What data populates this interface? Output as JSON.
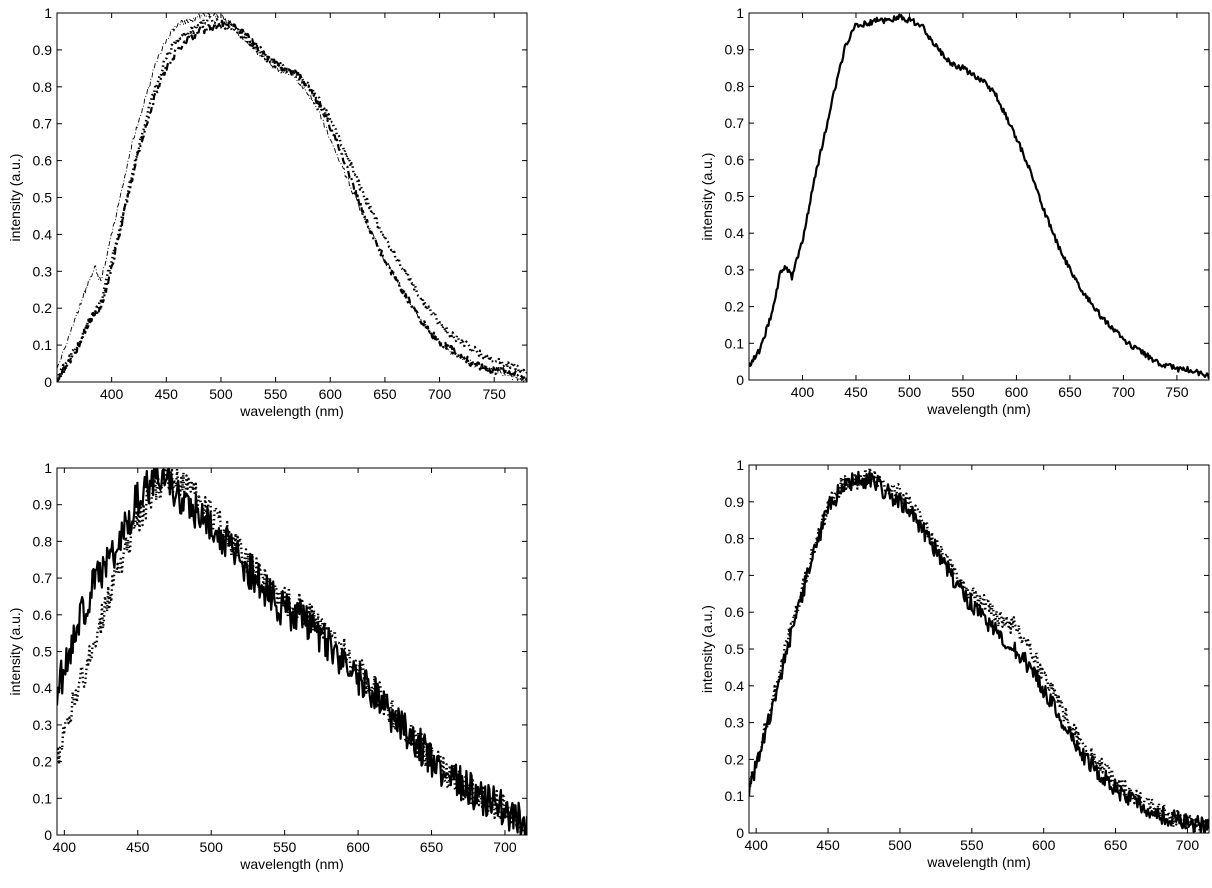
{
  "chart_data": [
    {
      "id": "top-left",
      "type": "line",
      "xlabel": "wavelength (nm)",
      "ylabel": "intensity (a.u.)",
      "xlim": [
        350,
        780
      ],
      "ylim": [
        0,
        1
      ],
      "xticks": [
        "400",
        "450",
        "500",
        "550",
        "600",
        "650",
        "700",
        "750"
      ],
      "yticks": [
        "0",
        "0.1",
        "0.2",
        "0.3",
        "0.4",
        "0.5",
        "0.6",
        "0.7",
        "0.8",
        "0.9",
        "1"
      ],
      "grid": false,
      "series": [
        {
          "style": "thin-dashdot",
          "noise": 0.008,
          "x": [
            350,
            360,
            370,
            380,
            385,
            390,
            400,
            410,
            420,
            430,
            440,
            450,
            460,
            470,
            480,
            490,
            500,
            510,
            520,
            530,
            540,
            550,
            560,
            570,
            580,
            590,
            600,
            610,
            620,
            630,
            640,
            650,
            660,
            670,
            680,
            690,
            700,
            710,
            720,
            730,
            740,
            750,
            760,
            770,
            780
          ],
          "y": [
            0.03,
            0.12,
            0.2,
            0.28,
            0.31,
            0.27,
            0.4,
            0.53,
            0.66,
            0.76,
            0.86,
            0.93,
            0.97,
            0.98,
            0.99,
            1.0,
            0.99,
            0.97,
            0.93,
            0.9,
            0.88,
            0.85,
            0.84,
            0.82,
            0.78,
            0.73,
            0.66,
            0.59,
            0.52,
            0.45,
            0.39,
            0.33,
            0.28,
            0.23,
            0.18,
            0.14,
            0.11,
            0.08,
            0.06,
            0.05,
            0.04,
            0.03,
            0.02,
            0.01,
            0.0
          ]
        },
        {
          "style": "dotted",
          "noise": 0.01,
          "x": [
            350,
            360,
            370,
            380,
            390,
            400,
            410,
            420,
            430,
            440,
            450,
            460,
            470,
            480,
            490,
            500,
            510,
            520,
            530,
            540,
            550,
            560,
            570,
            580,
            590,
            600,
            610,
            620,
            630,
            640,
            650,
            660,
            670,
            680,
            690,
            700,
            710,
            720,
            730,
            740,
            750,
            760,
            770,
            780
          ],
          "y": [
            0.01,
            0.06,
            0.1,
            0.17,
            0.22,
            0.33,
            0.45,
            0.58,
            0.7,
            0.8,
            0.88,
            0.93,
            0.95,
            0.97,
            0.98,
            0.97,
            0.96,
            0.94,
            0.91,
            0.88,
            0.86,
            0.85,
            0.83,
            0.8,
            0.76,
            0.71,
            0.65,
            0.58,
            0.51,
            0.45,
            0.39,
            0.34,
            0.29,
            0.24,
            0.2,
            0.16,
            0.13,
            0.11,
            0.09,
            0.07,
            0.06,
            0.05,
            0.04,
            0.02
          ]
        },
        {
          "style": "thick-dashdot",
          "noise": 0.01,
          "x": [
            350,
            360,
            370,
            380,
            390,
            400,
            410,
            420,
            430,
            440,
            450,
            460,
            470,
            480,
            490,
            500,
            510,
            520,
            530,
            540,
            550,
            560,
            570,
            580,
            590,
            600,
            610,
            620,
            630,
            640,
            650,
            660,
            670,
            680,
            690,
            700,
            710,
            720,
            730,
            740,
            750,
            760,
            770,
            780
          ],
          "y": [
            0.0,
            0.05,
            0.1,
            0.17,
            0.2,
            0.31,
            0.44,
            0.57,
            0.68,
            0.78,
            0.85,
            0.9,
            0.93,
            0.95,
            0.96,
            0.97,
            0.97,
            0.95,
            0.92,
            0.89,
            0.86,
            0.85,
            0.83,
            0.8,
            0.75,
            0.69,
            0.62,
            0.54,
            0.46,
            0.39,
            0.33,
            0.28,
            0.23,
            0.18,
            0.14,
            0.11,
            0.09,
            0.07,
            0.05,
            0.04,
            0.03,
            0.03,
            0.02,
            0.01
          ]
        }
      ]
    },
    {
      "id": "top-right",
      "type": "line",
      "xlabel": "wavelength (nm)",
      "ylabel": "intensity (a.u.)",
      "xlim": [
        350,
        780
      ],
      "ylim": [
        0,
        1
      ],
      "xticks": [
        "400",
        "450",
        "500",
        "550",
        "600",
        "650",
        "700",
        "750"
      ],
      "yticks": [
        "0",
        "0.1",
        "0.2",
        "0.3",
        "0.4",
        "0.5",
        "0.6",
        "0.7",
        "0.8",
        "0.9",
        "1"
      ],
      "grid": false,
      "series": [
        {
          "style": "solid",
          "noise": 0.008,
          "x": [
            350,
            360,
            370,
            380,
            385,
            390,
            400,
            410,
            420,
            430,
            440,
            450,
            460,
            470,
            480,
            490,
            500,
            510,
            520,
            530,
            540,
            550,
            560,
            570,
            580,
            590,
            600,
            610,
            620,
            630,
            640,
            650,
            660,
            670,
            680,
            690,
            700,
            710,
            720,
            730,
            740,
            750,
            760,
            770,
            780
          ],
          "y": [
            0.04,
            0.08,
            0.17,
            0.3,
            0.31,
            0.28,
            0.38,
            0.53,
            0.66,
            0.79,
            0.91,
            0.97,
            0.97,
            0.98,
            0.98,
            0.99,
            0.98,
            0.97,
            0.93,
            0.89,
            0.86,
            0.85,
            0.83,
            0.81,
            0.78,
            0.72,
            0.66,
            0.59,
            0.51,
            0.43,
            0.36,
            0.3,
            0.25,
            0.21,
            0.17,
            0.14,
            0.11,
            0.09,
            0.07,
            0.05,
            0.04,
            0.03,
            0.03,
            0.02,
            0.01
          ]
        }
      ]
    },
    {
      "id": "bottom-left",
      "type": "line",
      "xlabel": "wavelength (nm)",
      "ylabel": "intensity (a.u.)",
      "xlim": [
        395,
        715
      ],
      "ylim": [
        0,
        1
      ],
      "xticks": [
        "400",
        "450",
        "500",
        "550",
        "600",
        "650",
        "700"
      ],
      "yticks": [
        "0",
        "0.1",
        "0.2",
        "0.3",
        "0.4",
        "0.5",
        "0.6",
        "0.7",
        "0.8",
        "0.9",
        "1"
      ],
      "grid": false,
      "series": [
        {
          "style": "solid",
          "noise": 0.05,
          "x": [
            395,
            400,
            410,
            420,
            430,
            440,
            450,
            460,
            470,
            480,
            490,
            500,
            510,
            520,
            530,
            540,
            550,
            560,
            570,
            580,
            590,
            600,
            610,
            620,
            630,
            640,
            650,
            660,
            670,
            680,
            690,
            700,
            710,
            715
          ],
          "y": [
            0.4,
            0.45,
            0.58,
            0.68,
            0.74,
            0.82,
            0.92,
            0.96,
            0.96,
            0.92,
            0.88,
            0.84,
            0.8,
            0.75,
            0.7,
            0.65,
            0.61,
            0.6,
            0.56,
            0.52,
            0.47,
            0.43,
            0.39,
            0.34,
            0.29,
            0.25,
            0.21,
            0.17,
            0.14,
            0.11,
            0.09,
            0.07,
            0.04,
            0.02
          ]
        },
        {
          "style": "dotted",
          "noise": 0.04,
          "x": [
            395,
            400,
            410,
            420,
            430,
            440,
            450,
            460,
            470,
            480,
            490,
            500,
            510,
            520,
            530,
            540,
            550,
            560,
            570,
            580,
            590,
            600,
            610,
            620,
            630,
            640,
            650,
            660,
            670,
            680,
            690,
            700,
            710,
            715
          ],
          "y": [
            0.2,
            0.3,
            0.4,
            0.52,
            0.64,
            0.76,
            0.86,
            0.93,
            0.97,
            0.96,
            0.92,
            0.87,
            0.82,
            0.77,
            0.72,
            0.68,
            0.64,
            0.62,
            0.59,
            0.55,
            0.5,
            0.45,
            0.4,
            0.35,
            0.3,
            0.25,
            0.21,
            0.17,
            0.14,
            0.11,
            0.09,
            0.07,
            0.04,
            0.01
          ]
        }
      ]
    },
    {
      "id": "bottom-right",
      "type": "line",
      "xlabel": "wavelength (nm)",
      "ylabel": "intensity (a.u.)",
      "xlim": [
        395,
        715
      ],
      "ylim": [
        0,
        1
      ],
      "xticks": [
        "400",
        "450",
        "500",
        "550",
        "600",
        "650",
        "700"
      ],
      "yticks": [
        "0",
        "0.1",
        "0.2",
        "0.3",
        "0.4",
        "0.5",
        "0.6",
        "0.7",
        "0.8",
        "0.9",
        "1"
      ],
      "grid": false,
      "series": [
        {
          "style": "solid",
          "noise": 0.025,
          "x": [
            395,
            400,
            410,
            420,
            430,
            440,
            450,
            460,
            470,
            480,
            490,
            500,
            510,
            520,
            530,
            540,
            550,
            560,
            570,
            580,
            590,
            600,
            610,
            620,
            630,
            640,
            650,
            660,
            670,
            680,
            690,
            700,
            710,
            715
          ],
          "y": [
            0.12,
            0.18,
            0.32,
            0.48,
            0.62,
            0.76,
            0.88,
            0.94,
            0.96,
            0.96,
            0.93,
            0.9,
            0.86,
            0.8,
            0.74,
            0.67,
            0.62,
            0.58,
            0.53,
            0.5,
            0.45,
            0.39,
            0.32,
            0.25,
            0.2,
            0.16,
            0.12,
            0.09,
            0.07,
            0.05,
            0.04,
            0.03,
            0.02,
            0.01
          ]
        },
        {
          "style": "dotted",
          "noise": 0.025,
          "x": [
            395,
            400,
            410,
            420,
            430,
            440,
            450,
            460,
            470,
            480,
            490,
            500,
            510,
            520,
            530,
            540,
            550,
            560,
            570,
            580,
            590,
            600,
            610,
            620,
            630,
            640,
            650,
            660,
            670,
            680,
            690,
            700,
            710,
            715
          ],
          "y": [
            0.14,
            0.2,
            0.33,
            0.5,
            0.64,
            0.77,
            0.89,
            0.95,
            0.96,
            0.97,
            0.95,
            0.92,
            0.88,
            0.82,
            0.76,
            0.7,
            0.65,
            0.62,
            0.58,
            0.56,
            0.5,
            0.43,
            0.36,
            0.28,
            0.22,
            0.18,
            0.14,
            0.11,
            0.08,
            0.06,
            0.04,
            0.03,
            0.02,
            0.01
          ]
        }
      ]
    }
  ]
}
